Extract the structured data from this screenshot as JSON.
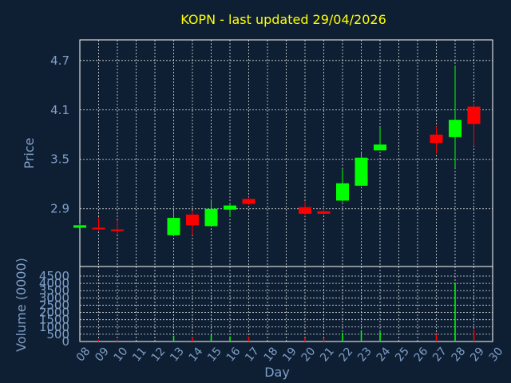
{
  "chart_data": [
    {
      "type": "candlestick",
      "title": "KOPN - last updated 29/04/2026",
      "ylabel": "Price",
      "ylim": [
        2.2,
        4.95
      ],
      "yticks": [
        2.9,
        3.5,
        4.1,
        4.7
      ],
      "ytick_labels": [
        "2.9",
        "3.5",
        "4.1",
        "4.7"
      ],
      "grid": true,
      "x_days": [
        "08",
        "09",
        "10",
        "11",
        "12",
        "13",
        "14",
        "15",
        "16",
        "17",
        "18",
        "19",
        "20",
        "21",
        "22",
        "23",
        "24",
        "25",
        "26",
        "27",
        "28",
        "29",
        "30"
      ],
      "candles": [
        {
          "day": "08",
          "open": 2.7,
          "high": 2.72,
          "low": 2.67,
          "close": 2.67,
          "color": "#00ff00"
        },
        {
          "day": "09",
          "open": 2.67,
          "high": 2.8,
          "low": 2.64,
          "close": 2.65,
          "color": "#ff0000"
        },
        {
          "day": "10",
          "open": 2.65,
          "high": 2.76,
          "low": 2.59,
          "close": 2.63,
          "color": "#ff0000"
        },
        {
          "day": "13",
          "open": 2.58,
          "high": 2.88,
          "low": 2.58,
          "close": 2.79,
          "color": "#00ff00"
        },
        {
          "day": "14",
          "open": 2.83,
          "high": 2.88,
          "low": 2.58,
          "close": 2.7,
          "color": "#ff0000"
        },
        {
          "day": "15",
          "open": 2.69,
          "high": 3.01,
          "low": 2.69,
          "close": 2.9,
          "color": "#00ff00"
        },
        {
          "day": "16",
          "open": 2.89,
          "high": 2.97,
          "low": 2.8,
          "close": 2.94,
          "color": "#00ff00"
        },
        {
          "day": "17",
          "open": 3.02,
          "high": 3.04,
          "low": 2.95,
          "close": 2.96,
          "color": "#ff0000"
        },
        {
          "day": "20",
          "open": 2.92,
          "high": 2.99,
          "low": 2.81,
          "close": 2.84,
          "color": "#ff0000"
        },
        {
          "day": "21",
          "open": 2.87,
          "high": 2.9,
          "low": 2.83,
          "close": 2.84,
          "color": "#ff0000"
        },
        {
          "day": "22",
          "open": 3.0,
          "high": 3.38,
          "low": 2.98,
          "close": 3.21,
          "color": "#00ff00"
        },
        {
          "day": "23",
          "open": 3.18,
          "high": 3.58,
          "low": 3.18,
          "close": 3.52,
          "color": "#00ff00"
        },
        {
          "day": "24",
          "open": 3.61,
          "high": 3.89,
          "low": 3.61,
          "close": 3.68,
          "color": "#00ff00"
        },
        {
          "day": "27",
          "open": 3.8,
          "high": 3.9,
          "low": 3.57,
          "close": 3.7,
          "color": "#ff0000"
        },
        {
          "day": "28",
          "open": 3.77,
          "high": 4.64,
          "low": 3.39,
          "close": 3.98,
          "color": "#00ff00"
        },
        {
          "day": "29",
          "open": 4.14,
          "high": 4.18,
          "low": 3.66,
          "close": 3.93,
          "color": "#ff0000"
        }
      ]
    },
    {
      "type": "bar",
      "ylabel": "Volume (0000)",
      "xlabel": "Day",
      "ylim": [
        0,
        4500
      ],
      "yticks": [
        0,
        500,
        1000,
        1500,
        2000,
        2500,
        3000,
        3500,
        4000,
        4500
      ],
      "ytick_labels": [
        "0",
        "500",
        "1000",
        "1500",
        "2000",
        "2500",
        "3000",
        "3500",
        "4000",
        "4500"
      ],
      "grid": true,
      "categories": [
        "08",
        "09",
        "10",
        "13",
        "14",
        "15",
        "16",
        "17",
        "20",
        "21",
        "22",
        "23",
        "24",
        "27",
        "28",
        "29"
      ],
      "values": [
        30,
        130,
        90,
        400,
        300,
        450,
        350,
        350,
        240,
        210,
        600,
        750,
        650,
        490,
        4020,
        800
      ],
      "colors": [
        "#00ff00",
        "#ff0000",
        "#ff0000",
        "#00ff00",
        "#ff0000",
        "#00ff00",
        "#00ff00",
        "#ff0000",
        "#ff0000",
        "#ff0000",
        "#00ff00",
        "#00ff00",
        "#00ff00",
        "#ff0000",
        "#00ff00",
        "#ff0000"
      ]
    }
  ]
}
